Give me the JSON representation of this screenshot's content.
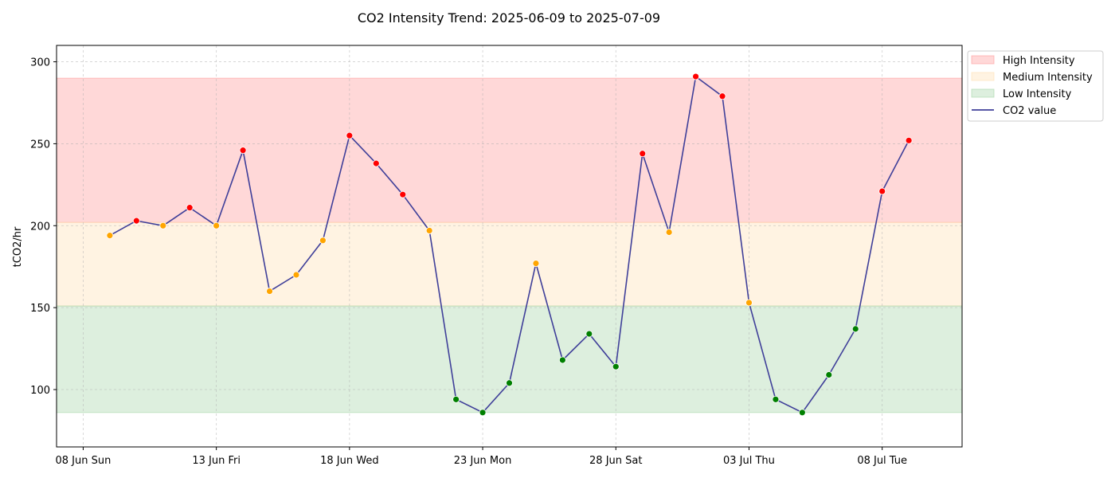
{
  "chart_data": {
    "type": "line",
    "title": "CO2 Intensity Trend: 2025-06-09 to 2025-07-09",
    "xlabel": "",
    "ylabel": "tCO2/hr",
    "x_range": [
      "2025-06-07",
      "2025-07-11"
    ],
    "ylim": [
      65,
      310
    ],
    "x_ticks": [
      {
        "date": "2025-06-08",
        "label": "08 Jun Sun"
      },
      {
        "date": "2025-06-13",
        "label": "13 Jun Fri"
      },
      {
        "date": "2025-06-18",
        "label": "18 Jun Wed"
      },
      {
        "date": "2025-06-23",
        "label": "23 Jun Mon"
      },
      {
        "date": "2025-06-28",
        "label": "28 Jun Sat"
      },
      {
        "date": "2025-07-03",
        "label": "03 Jul Thu"
      },
      {
        "date": "2025-07-08",
        "label": "08 Jul Tue"
      }
    ],
    "y_ticks": [
      100,
      150,
      200,
      250,
      300
    ],
    "grid": true,
    "legend_position": "outside-top-right",
    "bands": [
      {
        "name": "High Intensity",
        "from": 202,
        "to": 290,
        "color": "#ff9999"
      },
      {
        "name": "Medium Intensity",
        "from": 151,
        "to": 202,
        "color": "#ffe0b2"
      },
      {
        "name": "Low Intensity",
        "from": 86,
        "to": 151,
        "color": "#a5d6a7"
      }
    ],
    "series": [
      {
        "name": "CO2 value",
        "color": "#3f3f99",
        "points": [
          {
            "x": "2025-06-09",
            "y": 194,
            "level": "medium"
          },
          {
            "x": "2025-06-10",
            "y": 203,
            "level": "high"
          },
          {
            "x": "2025-06-11",
            "y": 200,
            "level": "medium"
          },
          {
            "x": "2025-06-12",
            "y": 211,
            "level": "high"
          },
          {
            "x": "2025-06-13",
            "y": 200,
            "level": "medium"
          },
          {
            "x": "2025-06-14",
            "y": 246,
            "level": "high"
          },
          {
            "x": "2025-06-15",
            "y": 160,
            "level": "medium"
          },
          {
            "x": "2025-06-16",
            "y": 170,
            "level": "medium"
          },
          {
            "x": "2025-06-17",
            "y": 191,
            "level": "medium"
          },
          {
            "x": "2025-06-18",
            "y": 255,
            "level": "high"
          },
          {
            "x": "2025-06-19",
            "y": 238,
            "level": "high"
          },
          {
            "x": "2025-06-20",
            "y": 219,
            "level": "high"
          },
          {
            "x": "2025-06-21",
            "y": 197,
            "level": "medium"
          },
          {
            "x": "2025-06-22",
            "y": 94,
            "level": "low"
          },
          {
            "x": "2025-06-23",
            "y": 86,
            "level": "low"
          },
          {
            "x": "2025-06-24",
            "y": 104,
            "level": "low"
          },
          {
            "x": "2025-06-25",
            "y": 177,
            "level": "medium"
          },
          {
            "x": "2025-06-26",
            "y": 118,
            "level": "low"
          },
          {
            "x": "2025-06-27",
            "y": 134,
            "level": "low"
          },
          {
            "x": "2025-06-28",
            "y": 114,
            "level": "low"
          },
          {
            "x": "2025-06-29",
            "y": 244,
            "level": "high"
          },
          {
            "x": "2025-06-30",
            "y": 196,
            "level": "medium"
          },
          {
            "x": "2025-07-01",
            "y": 291,
            "level": "high"
          },
          {
            "x": "2025-07-02",
            "y": 279,
            "level": "high"
          },
          {
            "x": "2025-07-03",
            "y": 153,
            "level": "medium"
          },
          {
            "x": "2025-07-04",
            "y": 94,
            "level": "low"
          },
          {
            "x": "2025-07-05",
            "y": 86,
            "level": "low"
          },
          {
            "x": "2025-07-06",
            "y": 109,
            "level": "low"
          },
          {
            "x": "2025-07-07",
            "y": 137,
            "level": "low"
          },
          {
            "x": "2025-07-08",
            "y": 221,
            "level": "high"
          },
          {
            "x": "2025-07-09",
            "y": 252,
            "level": "high"
          }
        ]
      }
    ],
    "level_colors": {
      "high": "#ff0000",
      "medium": "#ffa500",
      "low": "#008000"
    }
  }
}
